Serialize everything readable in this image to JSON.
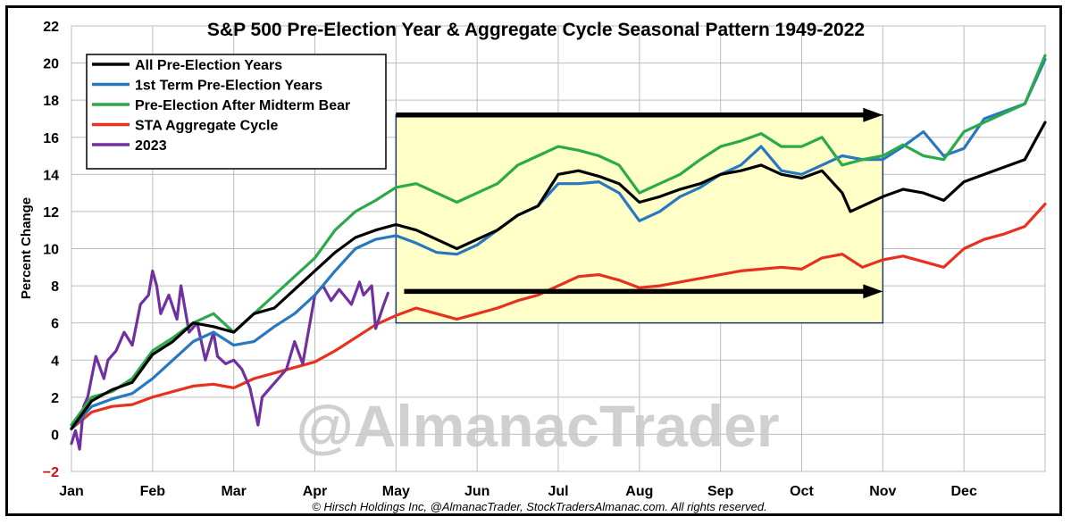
{
  "chart_data": {
    "type": "line",
    "title": "S&P 500 Pre-Election Year & Aggregate Cycle Seasonal Pattern 1949-2022",
    "ylabel": "Percent Change",
    "xlabel": "",
    "ylim": [
      -2,
      22
    ],
    "yticks": [
      -2,
      0,
      2,
      4,
      6,
      8,
      10,
      12,
      14,
      16,
      18,
      20,
      22
    ],
    "categories": [
      "Jan",
      "Feb",
      "Mar",
      "Apr",
      "May",
      "Jun",
      "Jul",
      "Aug",
      "Sep",
      "Oct",
      "Nov",
      "Dec"
    ],
    "grid": true,
    "legend_position": "top-left",
    "watermark": "@AlmanacTrader",
    "footer": "© Hirsch Holdings Inc, @AlmanacTrader, StockTradersAlmanac.com. All rights reserved.",
    "highlight_box": {
      "x_start": 4.0,
      "x_end": 10.0,
      "y_start": 6,
      "y_end": 17.2
    },
    "arrows": [
      {
        "x_start": 4.0,
        "x_end": 10.0,
        "y": 17.2
      },
      {
        "x_start": 4.1,
        "x_end": 10.0,
        "y": 7.7
      }
    ],
    "series": [
      {
        "name": "All Pre-Election Years",
        "color": "#000000",
        "x": [
          0,
          0.25,
          0.5,
          0.75,
          1.0,
          1.25,
          1.5,
          1.75,
          2.0,
          2.25,
          2.5,
          2.75,
          3.0,
          3.25,
          3.5,
          3.75,
          4.0,
          4.25,
          4.5,
          4.75,
          5.0,
          5.25,
          5.5,
          5.75,
          6.0,
          6.25,
          6.5,
          6.75,
          7.0,
          7.25,
          7.5,
          7.75,
          8.0,
          8.25,
          8.5,
          8.75,
          9.0,
          9.25,
          9.5,
          9.6,
          9.75,
          10.0,
          10.25,
          10.5,
          10.75,
          11.0,
          11.25,
          11.5,
          11.75,
          12.0
        ],
        "values": [
          0.3,
          1.8,
          2.4,
          2.8,
          4.3,
          5.0,
          6.0,
          5.8,
          5.5,
          6.5,
          6.8,
          7.8,
          8.8,
          9.8,
          10.6,
          11.0,
          11.3,
          11.0,
          10.5,
          10.0,
          10.5,
          11.0,
          11.8,
          12.3,
          14.0,
          14.2,
          13.9,
          13.5,
          12.5,
          12.8,
          13.2,
          13.5,
          14.0,
          14.2,
          14.5,
          14.0,
          13.8,
          14.2,
          13.0,
          12.0,
          12.3,
          12.8,
          13.2,
          13.0,
          12.6,
          13.6,
          14.0,
          14.4,
          14.8,
          16.8
        ]
      },
      {
        "name": "1st Term Pre-Election Years",
        "color": "#2878c0",
        "x": [
          0,
          0.25,
          0.5,
          0.75,
          1.0,
          1.25,
          1.5,
          1.75,
          2.0,
          2.25,
          2.5,
          2.75,
          3.0,
          3.25,
          3.5,
          3.75,
          4.0,
          4.25,
          4.5,
          4.75,
          5.0,
          5.25,
          5.5,
          5.75,
          6.0,
          6.25,
          6.5,
          6.75,
          7.0,
          7.25,
          7.5,
          7.75,
          8.0,
          8.25,
          8.5,
          8.75,
          9.0,
          9.25,
          9.5,
          9.75,
          10.0,
          10.25,
          10.5,
          10.75,
          11.0,
          11.25,
          11.5,
          11.75,
          12.0
        ],
        "values": [
          0.3,
          1.5,
          1.9,
          2.2,
          3.0,
          4.0,
          5.0,
          5.5,
          4.8,
          5.0,
          5.8,
          6.5,
          7.5,
          8.8,
          10.0,
          10.5,
          10.7,
          10.3,
          9.8,
          9.7,
          10.2,
          11.0,
          11.8,
          12.3,
          13.5,
          13.5,
          13.6,
          13.0,
          11.5,
          12.0,
          12.8,
          13.3,
          14.0,
          14.5,
          15.5,
          14.2,
          14.0,
          14.5,
          15.0,
          14.8,
          14.8,
          15.5,
          16.3,
          15.0,
          15.4,
          17.0,
          17.4,
          17.8,
          20.2
        ]
      },
      {
        "name": "Pre-Election After Midterm Bear",
        "color": "#2aaa4a",
        "x": [
          0,
          0.25,
          0.5,
          0.75,
          1.0,
          1.25,
          1.5,
          1.75,
          2.0,
          2.25,
          2.5,
          2.75,
          3.0,
          3.25,
          3.5,
          3.75,
          4.0,
          4.25,
          4.5,
          4.75,
          5.0,
          5.25,
          5.5,
          5.75,
          6.0,
          6.25,
          6.5,
          6.75,
          7.0,
          7.25,
          7.5,
          7.75,
          8.0,
          8.25,
          8.5,
          8.75,
          9.0,
          9.25,
          9.5,
          9.75,
          10.0,
          10.25,
          10.5,
          10.75,
          11.0,
          11.25,
          11.5,
          11.75,
          12.0
        ],
        "values": [
          0.5,
          2.0,
          2.3,
          3.0,
          4.5,
          5.2,
          6.0,
          6.5,
          5.5,
          6.5,
          7.5,
          8.5,
          9.5,
          11.0,
          12.0,
          12.6,
          13.3,
          13.5,
          13.0,
          12.5,
          13.0,
          13.5,
          14.5,
          15.0,
          15.5,
          15.3,
          15.0,
          14.5,
          13.0,
          13.5,
          14.0,
          14.8,
          15.5,
          15.8,
          16.2,
          15.5,
          15.5,
          16.0,
          14.5,
          14.8,
          15.0,
          15.6,
          15.0,
          14.8,
          16.3,
          16.8,
          17.3,
          17.8,
          20.4
        ]
      },
      {
        "name": "STA Aggregate Cycle",
        "color": "#e8301e",
        "x": [
          0,
          0.25,
          0.5,
          0.75,
          1.0,
          1.25,
          1.5,
          1.75,
          2.0,
          2.25,
          2.5,
          2.75,
          3.0,
          3.25,
          3.5,
          3.75,
          4.0,
          4.25,
          4.5,
          4.75,
          5.0,
          5.25,
          5.5,
          5.75,
          6.0,
          6.25,
          6.5,
          6.75,
          7.0,
          7.25,
          7.5,
          7.75,
          8.0,
          8.25,
          8.5,
          8.75,
          9.0,
          9.25,
          9.5,
          9.75,
          10.0,
          10.25,
          10.5,
          10.75,
          11.0,
          11.25,
          11.5,
          11.75,
          12.0
        ],
        "values": [
          0.3,
          1.2,
          1.5,
          1.6,
          2.0,
          2.3,
          2.6,
          2.7,
          2.5,
          3.0,
          3.3,
          3.6,
          3.9,
          4.5,
          5.2,
          5.9,
          6.4,
          6.8,
          6.5,
          6.2,
          6.5,
          6.8,
          7.2,
          7.5,
          8.0,
          8.5,
          8.6,
          8.3,
          7.9,
          8.0,
          8.2,
          8.4,
          8.6,
          8.8,
          8.9,
          9.0,
          8.9,
          9.5,
          9.7,
          9.0,
          9.4,
          9.6,
          9.3,
          9.0,
          10.0,
          10.5,
          10.8,
          11.2,
          12.4
        ]
      },
      {
        "name": "2023",
        "color": "#7030a0",
        "x": [
          0,
          0.05,
          0.1,
          0.15,
          0.2,
          0.3,
          0.4,
          0.45,
          0.55,
          0.65,
          0.75,
          0.85,
          0.95,
          1.0,
          1.05,
          1.1,
          1.2,
          1.3,
          1.35,
          1.45,
          1.55,
          1.65,
          1.75,
          1.8,
          1.9,
          2.0,
          2.1,
          2.2,
          2.3,
          2.35,
          2.45,
          2.55,
          2.65,
          2.75,
          2.85,
          3.0,
          3.1,
          3.2,
          3.3,
          3.45,
          3.55,
          3.6,
          3.7,
          3.75,
          3.85,
          3.9
        ],
        "values": [
          -0.5,
          0.2,
          -0.8,
          1.5,
          2.0,
          4.2,
          3.0,
          4.0,
          4.5,
          5.5,
          4.8,
          7.0,
          7.5,
          8.8,
          8.0,
          6.5,
          7.5,
          6.2,
          8.0,
          5.5,
          6.0,
          4.0,
          5.5,
          4.2,
          3.8,
          4.0,
          3.5,
          2.5,
          0.5,
          2.0,
          2.5,
          3.0,
          3.5,
          5.0,
          3.8,
          7.5,
          8.0,
          7.2,
          7.8,
          7.0,
          8.2,
          7.5,
          8.0,
          5.7,
          7.0,
          7.6
        ]
      }
    ]
  }
}
